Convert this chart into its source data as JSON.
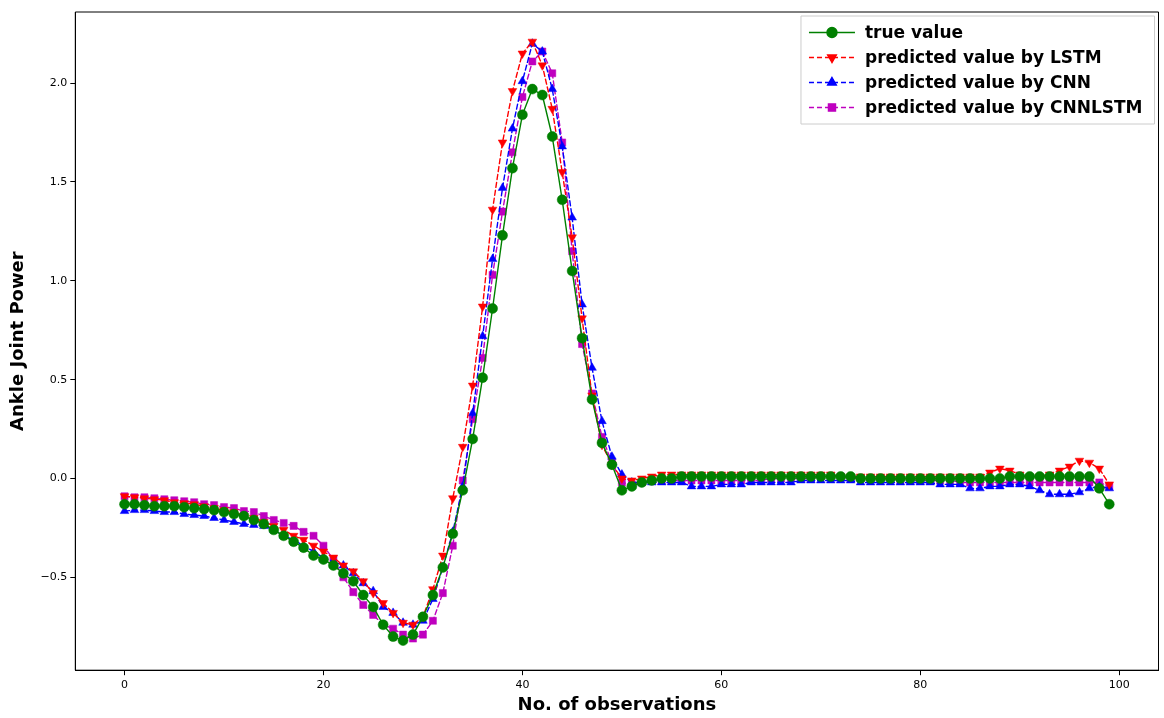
{
  "chart_data": {
    "type": "line",
    "xlabel": "No. of observations",
    "ylabel": "Ankle Joint Power",
    "x": [
      0,
      1,
      2,
      3,
      4,
      5,
      6,
      7,
      8,
      9,
      10,
      11,
      12,
      13,
      14,
      15,
      16,
      17,
      18,
      19,
      20,
      21,
      22,
      23,
      24,
      25,
      26,
      27,
      28,
      29,
      30,
      31,
      32,
      33,
      34,
      35,
      36,
      37,
      38,
      39,
      40,
      41,
      42,
      43,
      44,
      45,
      46,
      47,
      48,
      49,
      50,
      51,
      52,
      53,
      54,
      55,
      56,
      57,
      58,
      59,
      60,
      61,
      62,
      63,
      64,
      65,
      66,
      67,
      68,
      69,
      70,
      71,
      72,
      73,
      74,
      75,
      76,
      77,
      78,
      79,
      80,
      81,
      82,
      83,
      84,
      85,
      86,
      87,
      88,
      89,
      90,
      91,
      92,
      93,
      94,
      95,
      96,
      97,
      98,
      99
    ],
    "xlim": [
      -4.95,
      103.95
    ],
    "xticks": [
      0,
      20,
      40,
      60,
      80,
      100
    ],
    "ylim": [
      -0.97,
      2.36
    ],
    "yticks": [
      {
        "value": -0.5,
        "label": "−0.5"
      },
      {
        "value": 0,
        "label": "0.0"
      },
      {
        "value": 0.5,
        "label": "0.5"
      },
      {
        "value": 1,
        "label": "1.0"
      },
      {
        "value": 1.5,
        "label": "1.5"
      },
      {
        "value": 2,
        "label": "2.0"
      }
    ],
    "grid": false,
    "legend": "top right",
    "series": [
      {
        "name": "true value",
        "color": "#008000",
        "marker": "circle",
        "line_style": "solid",
        "values": [
          -0.13,
          -0.13,
          -0.135,
          -0.14,
          -0.14,
          -0.14,
          -0.145,
          -0.15,
          -0.155,
          -0.16,
          -0.17,
          -0.18,
          -0.19,
          -0.21,
          -0.23,
          -0.26,
          -0.29,
          -0.32,
          -0.35,
          -0.39,
          -0.41,
          -0.44,
          -0.48,
          -0.52,
          -0.59,
          -0.65,
          -0.74,
          -0.8,
          -0.82,
          -0.79,
          -0.7,
          -0.59,
          -0.45,
          -0.28,
          -0.06,
          0.2,
          0.51,
          0.86,
          1.23,
          1.57,
          1.84,
          1.97,
          1.94,
          1.73,
          1.41,
          1.05,
          0.71,
          0.4,
          0.18,
          0.07,
          -0.06,
          -0.04,
          -0.02,
          -0.01,
          0.0,
          0.0,
          0.01,
          0.01,
          0.01,
          0.01,
          0.01,
          0.01,
          0.01,
          0.01,
          0.01,
          0.01,
          0.01,
          0.01,
          0.01,
          0.01,
          0.01,
          0.01,
          0.01,
          0.01,
          0.0,
          0.0,
          0.0,
          0.0,
          0.0,
          0.0,
          0.0,
          0.0,
          0.0,
          0.0,
          0.0,
          0.0,
          0.0,
          0.0,
          0.0,
          0.01,
          0.01,
          0.01,
          0.01,
          0.01,
          0.01,
          0.01,
          0.01,
          0.01,
          -0.05,
          -0.13
        ]
      },
      {
        "name": "predicted value by LSTM",
        "color": "#ff0000",
        "marker": "triangle_down",
        "line_style": "dashed",
        "values": [
          -0.09,
          -0.095,
          -0.1,
          -0.105,
          -0.11,
          -0.12,
          -0.125,
          -0.13,
          -0.14,
          -0.15,
          -0.16,
          -0.17,
          -0.19,
          -0.2,
          -0.22,
          -0.24,
          -0.26,
          -0.29,
          -0.31,
          -0.34,
          -0.37,
          -0.4,
          -0.44,
          -0.47,
          -0.52,
          -0.58,
          -0.63,
          -0.68,
          -0.73,
          -0.74,
          -0.7,
          -0.56,
          -0.39,
          -0.1,
          0.16,
          0.47,
          0.87,
          1.36,
          1.7,
          1.96,
          2.15,
          2.21,
          2.09,
          1.87,
          1.55,
          1.22,
          0.81,
          0.42,
          0.17,
          0.07,
          0.0,
          -0.01,
          0.0,
          0.01,
          0.02,
          0.02,
          0.02,
          0.02,
          0.02,
          0.02,
          0.02,
          0.02,
          0.02,
          0.02,
          0.02,
          0.02,
          0.02,
          0.02,
          0.02,
          0.02,
          0.02,
          0.02,
          0.01,
          0.01,
          0.01,
          0.01,
          0.01,
          0.01,
          0.01,
          0.01,
          0.01,
          0.01,
          0.01,
          0.01,
          0.01,
          0.01,
          0.01,
          0.03,
          0.05,
          0.04,
          0.02,
          0.01,
          0.01,
          0.02,
          0.04,
          0.06,
          0.09,
          0.08,
          0.05,
          -0.03
        ]
      },
      {
        "name": "predicted value by CNN",
        "color": "#0000ff",
        "marker": "triangle",
        "line_style": "dashed",
        "values": [
          -0.165,
          -0.16,
          -0.16,
          -0.165,
          -0.17,
          -0.17,
          -0.18,
          -0.185,
          -0.19,
          -0.2,
          -0.21,
          -0.22,
          -0.23,
          -0.235,
          -0.24,
          -0.26,
          -0.29,
          -0.31,
          -0.34,
          -0.37,
          -0.4,
          -0.42,
          -0.44,
          -0.48,
          -0.53,
          -0.57,
          -0.65,
          -0.68,
          -0.73,
          -0.74,
          -0.72,
          -0.61,
          -0.45,
          -0.27,
          -0.04,
          0.33,
          0.72,
          1.11,
          1.47,
          1.77,
          2.01,
          2.2,
          2.16,
          1.97,
          1.68,
          1.32,
          0.88,
          0.56,
          0.29,
          0.11,
          0.02,
          -0.02,
          -0.02,
          -0.02,
          -0.02,
          -0.02,
          -0.02,
          -0.04,
          -0.04,
          -0.04,
          -0.03,
          -0.03,
          -0.03,
          -0.02,
          -0.02,
          -0.02,
          -0.02,
          -0.02,
          -0.01,
          -0.01,
          -0.01,
          -0.01,
          -0.01,
          -0.01,
          -0.02,
          -0.02,
          -0.02,
          -0.02,
          -0.02,
          -0.02,
          -0.02,
          -0.02,
          -0.03,
          -0.03,
          -0.03,
          -0.05,
          -0.05,
          -0.04,
          -0.04,
          -0.03,
          -0.03,
          -0.04,
          -0.06,
          -0.08,
          -0.08,
          -0.08,
          -0.07,
          -0.05,
          -0.04,
          -0.05
        ]
      },
      {
        "name": "predicted value by CNNLSTM",
        "color": "#bf00bf",
        "marker": "square",
        "line_style": "dashed",
        "values": [
          -0.09,
          -0.095,
          -0.095,
          -0.1,
          -0.105,
          -0.11,
          -0.115,
          -0.12,
          -0.13,
          -0.135,
          -0.145,
          -0.15,
          -0.165,
          -0.17,
          -0.19,
          -0.21,
          -0.225,
          -0.24,
          -0.27,
          -0.29,
          -0.34,
          -0.41,
          -0.5,
          -0.575,
          -0.64,
          -0.69,
          -0.74,
          -0.76,
          -0.79,
          -0.81,
          -0.79,
          -0.72,
          -0.58,
          -0.34,
          -0.01,
          0.3,
          0.61,
          1.03,
          1.35,
          1.65,
          1.93,
          2.11,
          2.16,
          2.05,
          1.7,
          1.15,
          0.68,
          0.43,
          0.21,
          0.08,
          -0.02,
          -0.03,
          -0.02,
          -0.01,
          -0.01,
          -0.01,
          -0.01,
          -0.01,
          -0.01,
          -0.01,
          -0.01,
          -0.01,
          -0.01,
          -0.01,
          -0.01,
          0.0,
          0.0,
          0.0,
          0.0,
          0.0,
          0.01,
          0.01,
          0.01,
          0.0,
          0.0,
          0.0,
          0.0,
          0.0,
          -0.01,
          -0.01,
          -0.01,
          -0.01,
          -0.01,
          -0.01,
          -0.02,
          -0.02,
          -0.02,
          -0.02,
          -0.02,
          -0.02,
          -0.02,
          -0.02,
          -0.02,
          -0.02,
          -0.02,
          -0.02,
          -0.02,
          -0.02,
          -0.02,
          -0.04
        ]
      }
    ]
  }
}
